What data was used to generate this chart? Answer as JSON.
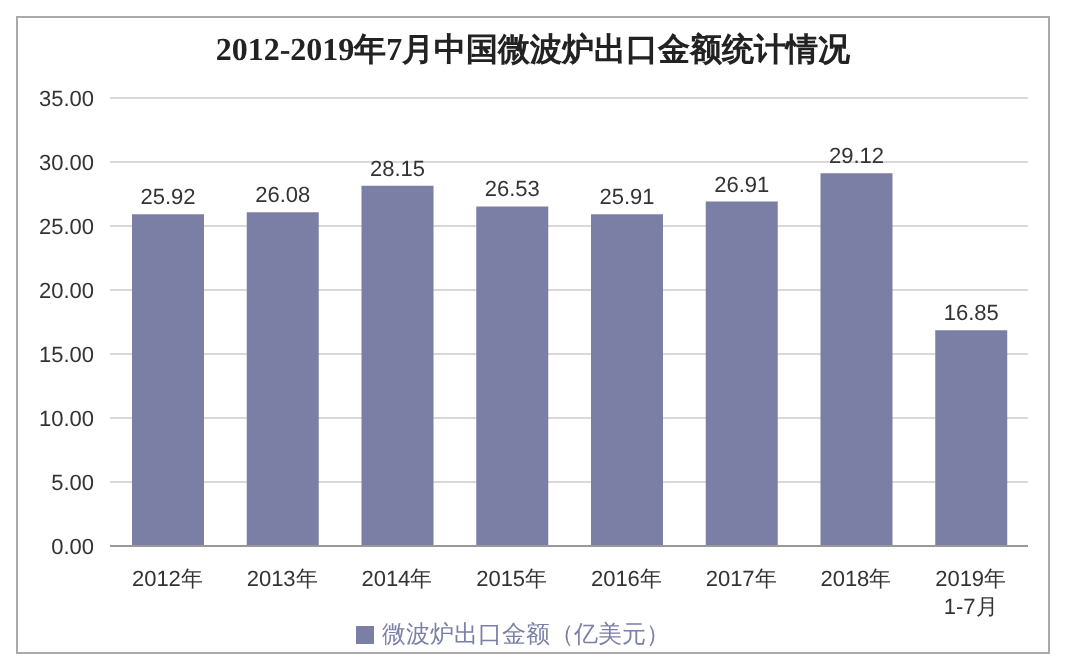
{
  "chart_data": {
    "type": "bar",
    "title": "2012-2019年7月中国微波炉出口金额统计情况",
    "categories": [
      "2012年",
      "2013年",
      "2014年",
      "2015年",
      "2016年",
      "2017年",
      "2018年",
      "2019年\n1-7月"
    ],
    "series": [
      {
        "name": "微波炉出口金额（亿美元）",
        "color": "#7b7fa6",
        "values": [
          25.92,
          26.08,
          28.15,
          26.53,
          25.91,
          26.91,
          29.12,
          16.85
        ]
      }
    ],
    "ylim": [
      0,
      35
    ],
    "yticks": [
      {
        "value": 0,
        "label": "0.00"
      },
      {
        "value": 5,
        "label": "5.00"
      },
      {
        "value": 10,
        "label": "10.00"
      },
      {
        "value": 15,
        "label": "15.00"
      },
      {
        "value": 20,
        "label": "20.00"
      },
      {
        "value": 25,
        "label": "25.00"
      },
      {
        "value": 30,
        "label": "30.00"
      },
      {
        "value": 35,
        "label": "35.00"
      }
    ],
    "grid": "y",
    "legend": "bottom",
    "data_labels": true
  }
}
